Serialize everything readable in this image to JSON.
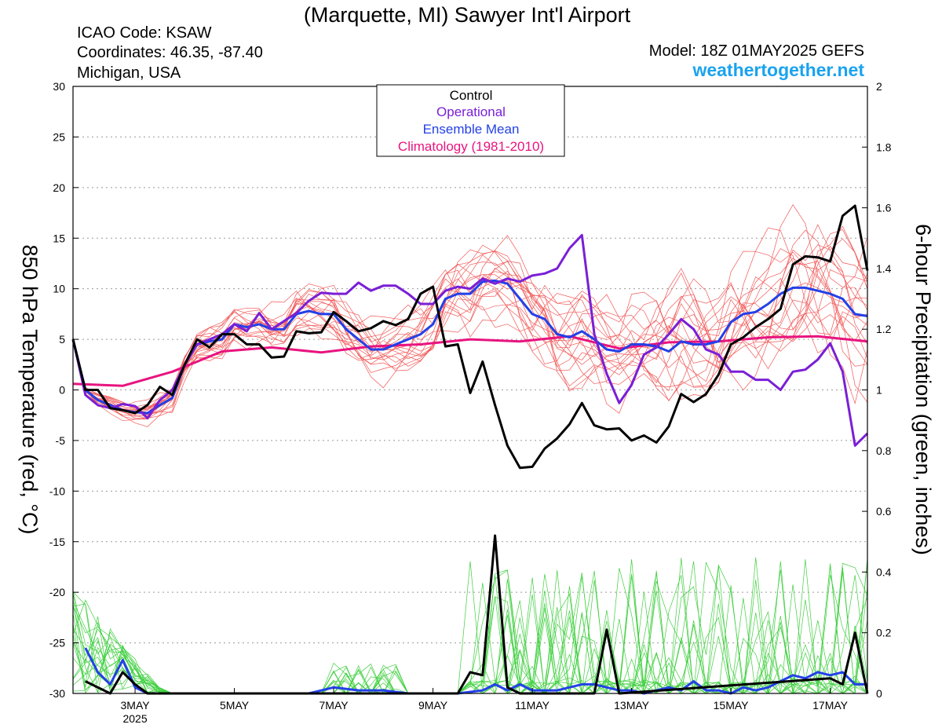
{
  "header": {
    "title": "(Marquette, MI) Sawyer Int'l Airport",
    "icao": "ICAO Code: KSAW",
    "coords": "Coordinates: 46.35, -87.40",
    "region": "Michigan, USA",
    "model": "Model: 18Z 01MAY2025 GEFS",
    "site": "weathertogether.net"
  },
  "colors": {
    "control": "#000000",
    "operational": "#7a1fd6",
    "ensemble_mean": "#2340e8",
    "climatology": "#e8147f",
    "members_temp": "#f25a5a",
    "members_precip": "#3fcf3f",
    "site": "#1aa3ee"
  },
  "chart_data": {
    "type": "line",
    "title": "(Marquette, MI) Sawyer Int'l Airport",
    "ylabel": "850 hPa Temperature (red, °C)",
    "y2label": "6-hour Precipitation (green, inches)",
    "x_unit": "days since 00Z 01MAY2025",
    "xlim": [
      1.75,
      17.75
    ],
    "ylim": [
      -30,
      30
    ],
    "y2lim": [
      0,
      2
    ],
    "x_ticks": [
      {
        "x": 3,
        "label": "3MAY",
        "sub": "2025"
      },
      {
        "x": 5,
        "label": "5MAY"
      },
      {
        "x": 7,
        "label": "7MAY"
      },
      {
        "x": 9,
        "label": "9MAY"
      },
      {
        "x": 11,
        "label": "11MAY"
      },
      {
        "x": 13,
        "label": "13MAY"
      },
      {
        "x": 15,
        "label": "15MAY"
      },
      {
        "x": 17,
        "label": "17MAY"
      }
    ],
    "y_ticks": [
      30,
      25,
      20,
      15,
      10,
      5,
      0,
      -5,
      -10,
      -15,
      -20,
      -25,
      -30
    ],
    "y2_ticks": [
      "2",
      "1.8",
      "1.6",
      "1.4",
      "1.2",
      "1",
      "0.8",
      "0.6",
      "0.4",
      "0.2",
      "0"
    ],
    "grid": "dotted horizontal",
    "legend": {
      "position": "top-center",
      "entries": [
        {
          "label": "Control",
          "color": "#000000"
        },
        {
          "label": "Operational",
          "color": "#7a1fd6"
        },
        {
          "label": "Ensemble Mean",
          "color": "#2340e8"
        },
        {
          "label": "Climatology (1981-2010)",
          "color": "#e8147f"
        }
      ]
    },
    "series": [
      {
        "name": "Control",
        "axis": "temp",
        "x": [
          1.75,
          2.0,
          2.25,
          2.5,
          2.75,
          3.0,
          3.25,
          3.5,
          3.75,
          4.0,
          4.25,
          4.5,
          4.75,
          5.0,
          5.25,
          5.5,
          5.75,
          6.0,
          6.25,
          6.5,
          6.75,
          7.0,
          7.25,
          7.5,
          7.75,
          8.0,
          8.25,
          8.5,
          8.75,
          9.0,
          9.25,
          9.5,
          9.75,
          10.0,
          10.25,
          10.5,
          10.75,
          11.0,
          11.25,
          11.5,
          11.75,
          12.0,
          12.25,
          12.5,
          12.75,
          13.0,
          13.25,
          13.5,
          13.75,
          14.0,
          14.25,
          14.5,
          14.75,
          15.0,
          15.25,
          15.5,
          15.75,
          16.0,
          16.25,
          16.5,
          16.75,
          17.0,
          17.25,
          17.5,
          17.75
        ],
        "values": [
          5,
          0,
          0,
          -1.8,
          -2,
          -2.3,
          -1.5,
          0.3,
          -0.5,
          2.5,
          5,
          4.2,
          5.5,
          5.5,
          4.5,
          4.5,
          3.2,
          3.3,
          5.8,
          5.6,
          5.7,
          7.7,
          6.8,
          5.8,
          6.1,
          6.8,
          6.4,
          7.0,
          9.5,
          10.2,
          4.3,
          4.5,
          -0.3,
          2.8,
          -1.5,
          -5.5,
          -7.7,
          -7.6,
          -5.8,
          -4.8,
          -3.4,
          -1.3,
          -3.5,
          -3.9,
          -3.8,
          -5.0,
          -4.5,
          -5.2,
          -3.6,
          -0.4,
          -1.2,
          -0.4,
          1.5,
          4.5,
          5.2,
          6.2,
          7.0,
          8.0,
          12.4,
          13.2,
          13.1,
          12.7,
          17.2,
          18.2,
          11.8
        ]
      },
      {
        "name": "Operational",
        "axis": "temp",
        "x": [
          1.75,
          2.0,
          2.25,
          2.5,
          2.75,
          3.0,
          3.25,
          3.5,
          3.75,
          4.0,
          4.25,
          4.5,
          4.75,
          5.0,
          5.25,
          5.5,
          5.75,
          6.0,
          6.25,
          6.5,
          6.75,
          7.0,
          7.25,
          7.5,
          7.75,
          8.0,
          8.25,
          8.5,
          8.75,
          9.0,
          9.25,
          9.5,
          9.75,
          10.0,
          10.25,
          10.5,
          10.75,
          11.0,
          11.25,
          11.5,
          11.75,
          12.0,
          12.25,
          12.5,
          12.75,
          13.0,
          13.25,
          13.5,
          13.75,
          14.0,
          14.25,
          14.5,
          14.75,
          15.0,
          15.25,
          15.5,
          15.75,
          16.0,
          16.25,
          16.5,
          16.75,
          17.0,
          17.25,
          17.5,
          17.75
        ],
        "values": [
          5,
          -0.5,
          -1.5,
          -1.8,
          -1.4,
          -1.6,
          -2.8,
          -1.0,
          0,
          2.5,
          4.5,
          5.0,
          5.5,
          6.5,
          5.8,
          7.6,
          6.0,
          6.8,
          7.6,
          8.8,
          9.6,
          9.5,
          9.5,
          10.6,
          9.8,
          10.3,
          10.3,
          9.5,
          8.5,
          8.5,
          9.8,
          10.2,
          10.0,
          11.0,
          10.5,
          11.0,
          10.7,
          11.3,
          11.5,
          12.0,
          14.0,
          15.3,
          5.5,
          1.6,
          -1.3,
          0.5,
          3.5,
          4.2,
          5.5,
          7.0,
          6.0,
          4.0,
          3.5,
          1.8,
          1.8,
          1.0,
          1.0,
          0,
          1.8,
          2.0,
          3.0,
          4.6,
          1.8,
          -5.5,
          -4.3
        ]
      },
      {
        "name": "Ensemble Mean",
        "axis": "temp",
        "x": [
          1.75,
          2.0,
          2.25,
          2.5,
          2.75,
          3.0,
          3.25,
          3.5,
          3.75,
          4.0,
          4.25,
          4.5,
          4.75,
          5.0,
          5.25,
          5.5,
          5.75,
          6.0,
          6.25,
          6.5,
          6.75,
          7.0,
          7.25,
          7.5,
          7.75,
          8.0,
          8.25,
          8.5,
          8.75,
          9.0,
          9.25,
          9.5,
          9.75,
          10.0,
          10.25,
          10.5,
          10.75,
          11.0,
          11.25,
          11.5,
          11.75,
          12.0,
          12.25,
          12.5,
          12.75,
          13.0,
          13.25,
          13.5,
          13.75,
          14.0,
          14.25,
          14.5,
          14.75,
          15.0,
          15.25,
          15.5,
          15.75,
          16.0,
          16.25,
          16.5,
          16.75,
          17.0,
          17.25,
          17.5,
          17.75
        ],
        "values": [
          5,
          0,
          -1.0,
          -1.5,
          -2.0,
          -2.2,
          -2.3,
          -1.5,
          -0.8,
          2.5,
          4.5,
          4.8,
          5.0,
          6.5,
          6.2,
          6.5,
          6.0,
          6.0,
          7.5,
          7.8,
          7.5,
          7.5,
          6.0,
          5.0,
          4.0,
          4.0,
          4.5,
          5.0,
          5.5,
          6.5,
          9.0,
          9.5,
          9.5,
          10.7,
          10.8,
          10.5,
          9.0,
          7.5,
          7.0,
          5.5,
          5.2,
          5.8,
          5.0,
          4.0,
          3.8,
          4.5,
          4.5,
          4.3,
          3.8,
          4.8,
          4.5,
          4.5,
          4.8,
          6.7,
          7.5,
          7.7,
          8.5,
          9.5,
          10.1,
          10.1,
          9.8,
          9.5,
          9.0,
          7.5,
          7.3
        ]
      },
      {
        "name": "Climatology (1981-2010)",
        "axis": "temp",
        "x": [
          1.75,
          2.75,
          3.75,
          4.75,
          5.75,
          6.75,
          7.75,
          8.75,
          9.75,
          10.75,
          11.75,
          12.75,
          13.75,
          14.75,
          15.75,
          16.75,
          17.75
        ],
        "values": [
          0.6,
          0.4,
          1.8,
          3.8,
          4.2,
          3.7,
          4.3,
          4.5,
          5.0,
          4.8,
          5.3,
          4.1,
          4.7,
          4.8,
          5.2,
          5.3,
          4.8
        ]
      },
      {
        "name": "Control",
        "axis": "precip",
        "x": [
          2.0,
          2.25,
          2.5,
          2.75,
          3.0,
          3.25,
          3.5,
          3.75,
          9.5,
          9.75,
          10.0,
          10.25,
          10.5,
          10.75,
          12.25,
          12.5,
          12.75,
          17.0,
          17.25,
          17.5,
          17.75
        ],
        "values": [
          0.04,
          0.02,
          0,
          0.07,
          0.03,
          0,
          0,
          0,
          0,
          0.07,
          0.06,
          0.52,
          0.02,
          0,
          0,
          0.21,
          0,
          0.05,
          0.03,
          0.2,
          0
        ]
      },
      {
        "name": "Ensemble Mean",
        "axis": "precip",
        "x": [
          2.0,
          2.25,
          2.5,
          2.75,
          3.0,
          3.25,
          3.5,
          3.75,
          6.5,
          7.0,
          7.5,
          8.0,
          8.5,
          9.0,
          9.5,
          10.0,
          10.25,
          10.5,
          10.75,
          11.0,
          11.25,
          11.5,
          11.75,
          12.0,
          12.25,
          12.5,
          12.75,
          13.0,
          13.25,
          13.5,
          13.75,
          14.0,
          14.25,
          14.5,
          14.75,
          15.0,
          15.25,
          15.5,
          15.75,
          16.0,
          16.25,
          16.5,
          16.75,
          17.0,
          17.25,
          17.5,
          17.75
        ],
        "values": [
          0.15,
          0.07,
          0.03,
          0.11,
          0.02,
          0,
          0,
          0,
          0,
          0.02,
          0.01,
          0.01,
          0,
          0,
          0,
          0.01,
          0.03,
          0.01,
          0.03,
          0.01,
          0.01,
          0.01,
          0.02,
          0.03,
          0.03,
          0.02,
          0.01,
          0.01,
          0,
          0.01,
          0.02,
          0.01,
          0.04,
          0.01,
          0.01,
          0,
          0.02,
          0.01,
          0.02,
          0.04,
          0.06,
          0.05,
          0.07,
          0.06,
          0.07,
          0.03,
          0.03
        ]
      }
    ]
  }
}
